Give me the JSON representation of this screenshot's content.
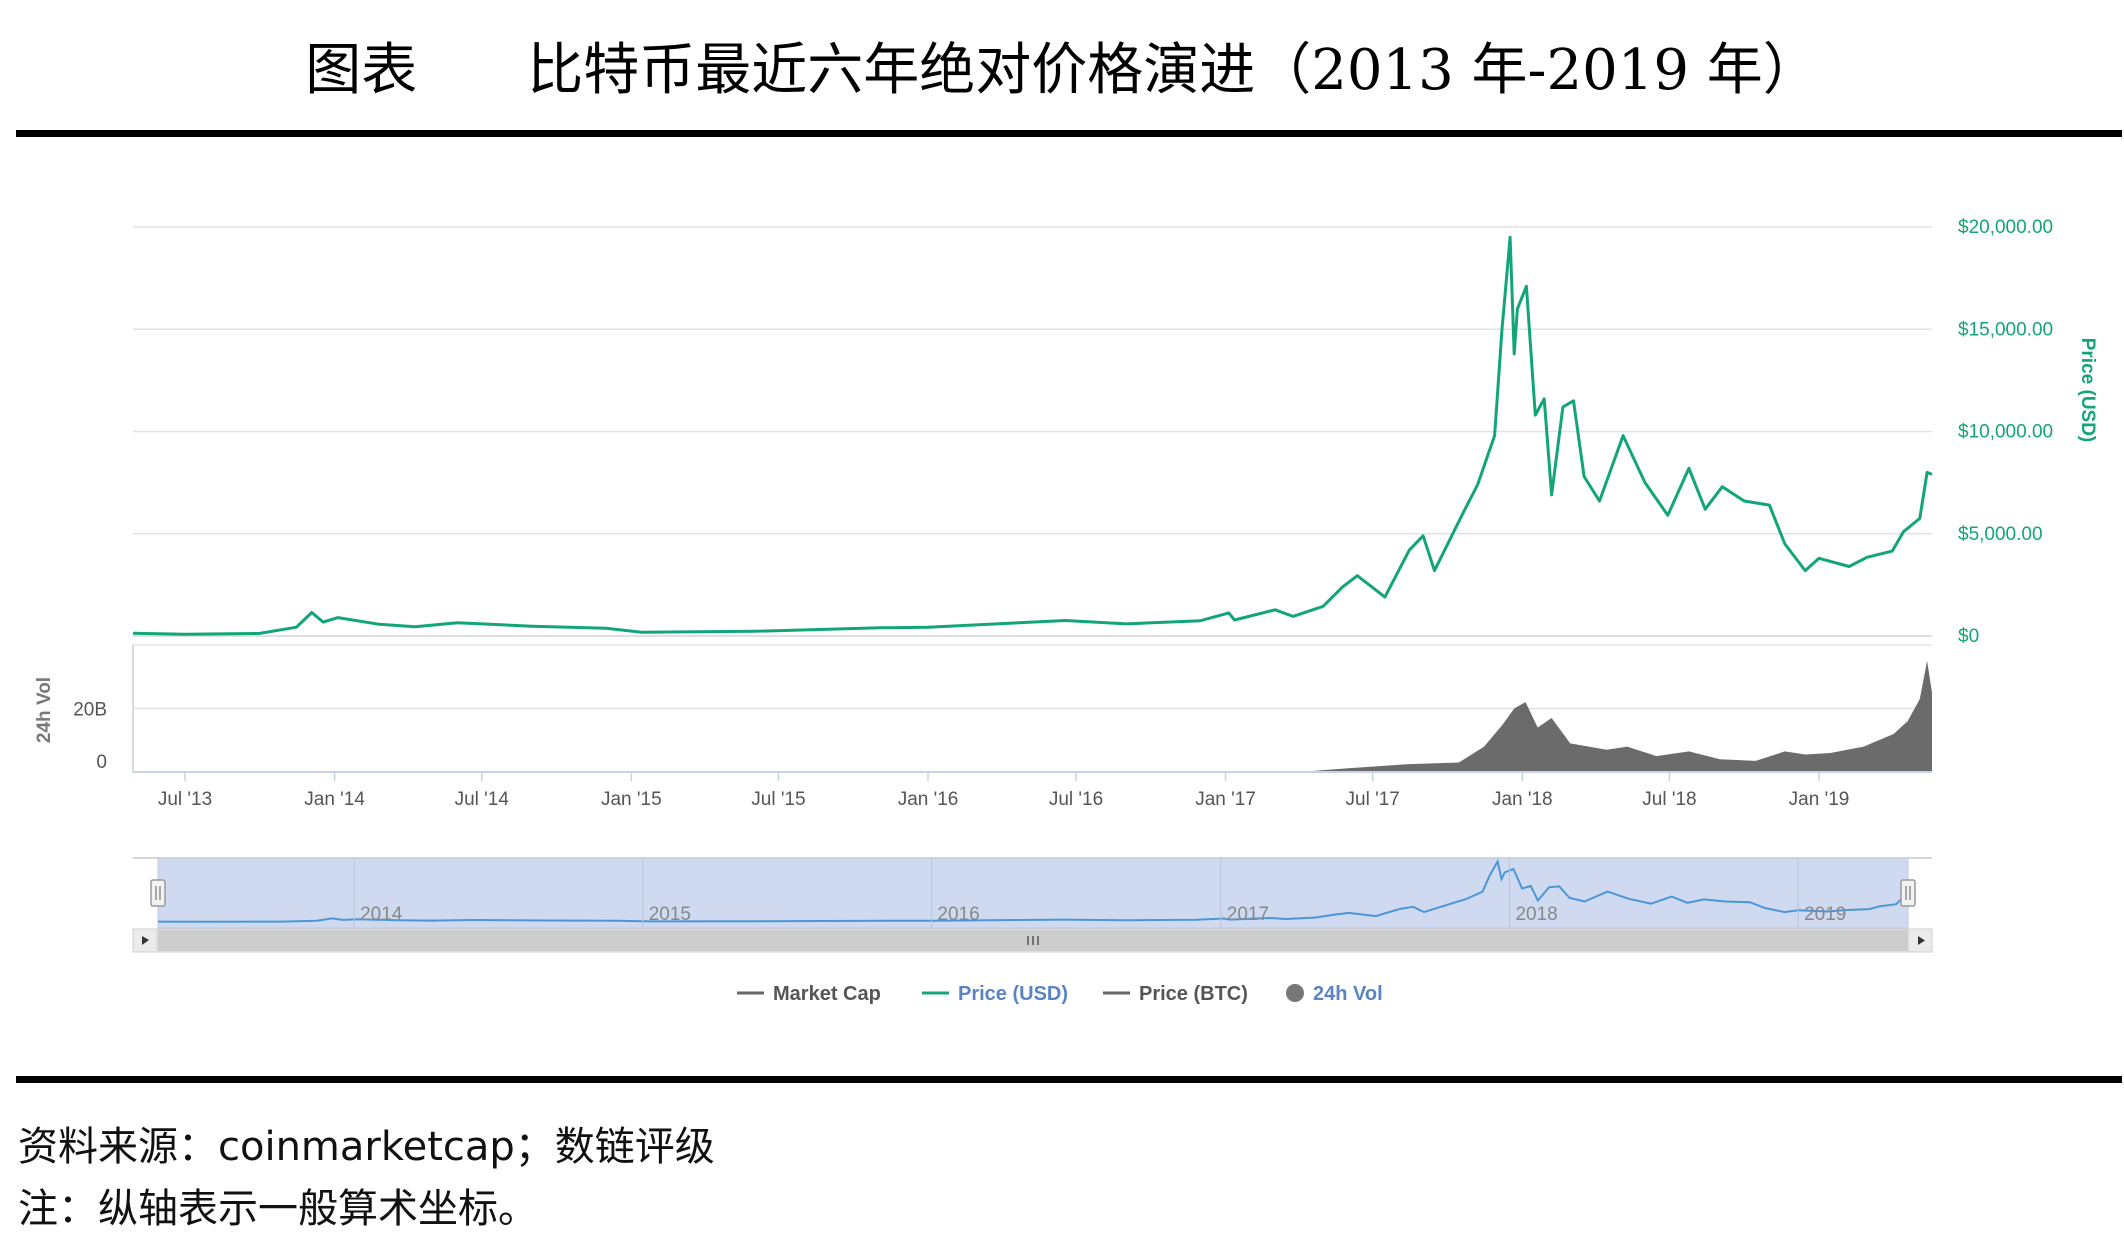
{
  "doc": {
    "title_prefix": "图表",
    "title_main": "比特币最近六年绝对价格演进（2013 年-2019 年）",
    "source": "资料来源：coinmarketcap；数链评级",
    "note": "注：纵轴表示一般算术坐标。"
  },
  "colors": {
    "price": "#13a57a",
    "volume": "#6b6b6b",
    "grid": "#e3e3e3",
    "axis_text": "#555555",
    "legend_active": "#5a84c4",
    "navigator_fill": "#cfdaf0",
    "navigator_line": "#4c96d7"
  },
  "chart_data": {
    "type": "line",
    "price_axis": {
      "label": "Price (USD)",
      "ticks": [
        "$20,000.00",
        "$15,000.00",
        "$10,000.00",
        "$5,000.00",
        "$0"
      ],
      "tick_values": [
        20000,
        15000,
        10000,
        5000,
        0
      ],
      "ylim": [
        0,
        20000
      ]
    },
    "volume_axis": {
      "label": "24h Vol",
      "ticks": [
        "20B",
        "0"
      ],
      "tick_values": [
        20000000000,
        0
      ],
      "ylim": [
        0,
        40000000000
      ]
    },
    "x_axis": {
      "ticks": [
        "Jul '13",
        "Jan '14",
        "Jul '14",
        "Jan '15",
        "Jul '15",
        "Jan '16",
        "Jul '16",
        "Jan '17",
        "Jul '17",
        "Jan '18",
        "Jul '18",
        "Jan '19"
      ],
      "tick_dates": [
        "2013-07-01",
        "2014-01-01",
        "2014-07-01",
        "2015-01-01",
        "2015-07-01",
        "2016-01-01",
        "2016-07-01",
        "2017-01-01",
        "2017-07-01",
        "2018-01-01",
        "2018-07-01",
        "2019-01-01"
      ],
      "range": [
        "2013-04-28",
        "2019-05-20"
      ]
    },
    "navigator_labels": [
      "2014",
      "2015",
      "2016",
      "2017",
      "2018",
      "2019"
    ],
    "navigator_dates": [
      "2014-01-01",
      "2015-01-01",
      "2016-01-01",
      "2017-01-01",
      "2018-01-01",
      "2019-01-01"
    ],
    "legend": [
      "Market Cap",
      "Price (USD)",
      "Price (BTC)",
      "24h Vol"
    ],
    "legend_position": "bottom",
    "series": [
      {
        "name": "Price (USD)",
        "x": [
          "2013-04-28",
          "2013-07-01",
          "2013-10-01",
          "2013-11-15",
          "2013-12-04",
          "2013-12-18",
          "2014-01-05",
          "2014-02-25",
          "2014-04-10",
          "2014-06-01",
          "2014-09-01",
          "2014-12-01",
          "2015-01-14",
          "2015-06-01",
          "2015-11-04",
          "2016-01-01",
          "2016-06-18",
          "2016-09-01",
          "2016-12-01",
          "2017-01-05",
          "2017-01-12",
          "2017-03-03",
          "2017-03-25",
          "2017-05-01",
          "2017-05-25",
          "2017-06-12",
          "2017-07-16",
          "2017-08-15",
          "2017-09-01",
          "2017-09-15",
          "2017-10-20",
          "2017-11-07",
          "2017-11-28",
          "2017-12-07",
          "2017-12-17",
          "2017-12-22",
          "2017-12-26",
          "2018-01-06",
          "2018-01-17",
          "2018-01-28",
          "2018-02-06",
          "2018-02-20",
          "2018-03-05",
          "2018-03-18",
          "2018-04-06",
          "2018-05-05",
          "2018-06-01",
          "2018-06-29",
          "2018-07-25",
          "2018-08-14",
          "2018-09-04",
          "2018-10-01",
          "2018-11-01",
          "2018-11-20",
          "2018-12-15",
          "2019-01-01",
          "2019-02-07",
          "2019-03-01",
          "2019-04-01",
          "2019-04-15",
          "2019-05-05",
          "2019-05-14",
          "2019-05-20"
        ],
        "y": [
          135,
          90,
          125,
          430,
          1150,
          680,
          900,
          570,
          450,
          650,
          480,
          380,
          180,
          230,
          400,
          430,
          760,
          590,
          750,
          1130,
          780,
          1280,
          960,
          1450,
          2400,
          2950,
          1900,
          4200,
          4900,
          3200,
          6000,
          7400,
          9800,
          15000,
          19500,
          13800,
          16000,
          17100,
          10800,
          11600,
          6900,
          11200,
          11500,
          7800,
          6600,
          9800,
          7500,
          5900,
          8200,
          6200,
          7300,
          6600,
          6400,
          4500,
          3200,
          3800,
          3400,
          3850,
          4150,
          5100,
          5750,
          8000,
          7900
        ]
      },
      {
        "name": "24h Vol",
        "x": [
          "2013-04-28",
          "2017-04-01",
          "2017-06-01",
          "2017-08-15",
          "2017-10-15",
          "2017-11-15",
          "2017-12-08",
          "2017-12-22",
          "2018-01-05",
          "2018-01-20",
          "2018-02-06",
          "2018-03-01",
          "2018-04-15",
          "2018-05-10",
          "2018-06-15",
          "2018-07-25",
          "2018-09-01",
          "2018-10-15",
          "2018-11-20",
          "2018-12-15",
          "2019-01-15",
          "2019-02-25",
          "2019-04-03",
          "2019-04-20",
          "2019-05-05",
          "2019-05-14",
          "2019-05-20"
        ],
        "y": [
          0,
          0,
          1200000000,
          2500000000,
          3000000000,
          8000000000,
          15000000000,
          20000000000,
          22000000000,
          14000000000,
          17000000000,
          9000000000,
          7000000000,
          8000000000,
          5000000000,
          6500000000,
          4000000000,
          3500000000,
          6500000000,
          5500000000,
          6000000000,
          8000000000,
          12000000000,
          16000000000,
          23000000000,
          35000000000,
          25000000000
        ]
      }
    ]
  }
}
